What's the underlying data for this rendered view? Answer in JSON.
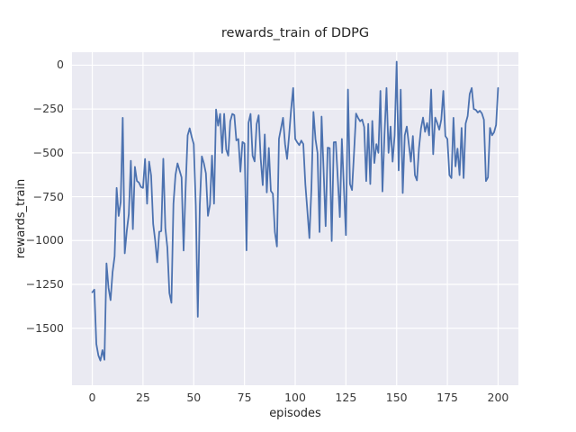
{
  "figure": {
    "background": "#ffffff",
    "axes_background": "#eaeaf2",
    "grid_color": "#ffffff",
    "text_color": "#262626"
  },
  "chart_data": {
    "type": "line",
    "title": "rewards_train of DDPG",
    "xlabel": "episodes",
    "ylabel": "rewards_train",
    "legend_position": "none",
    "grid": true,
    "line_color": "#4c72b0",
    "line_width": 1.8,
    "xlim": [
      -10,
      210
    ],
    "ylim": [
      -1825,
      74
    ],
    "xticks": [
      0,
      25,
      50,
      75,
      100,
      125,
      150,
      175,
      200
    ],
    "xtick_labels": [
      "0",
      "25",
      "50",
      "75",
      "100",
      "125",
      "150",
      "175",
      "200"
    ],
    "yticks": [
      0,
      -250,
      -500,
      -750,
      -1000,
      -1250,
      -1500
    ],
    "ytick_labels": [
      "0",
      "−250",
      "−500",
      "−750",
      "−1000",
      "−1250",
      "−1500"
    ],
    "x_start": 0,
    "x_step": 1,
    "series": [
      {
        "name": "rewards_train",
        "values": [
          -1295,
          -1280,
          -1590,
          -1655,
          -1685,
          -1625,
          -1680,
          -1130,
          -1270,
          -1340,
          -1180,
          -1090,
          -700,
          -860,
          -780,
          -300,
          -1073,
          -946,
          -850,
          -545,
          -935,
          -580,
          -660,
          -670,
          -695,
          -700,
          -535,
          -790,
          -550,
          -630,
          -905,
          -1000,
          -1124,
          -950,
          -946,
          -534,
          -929,
          -1040,
          -1300,
          -1355,
          -790,
          -627,
          -560,
          -600,
          -640,
          -1057,
          -700,
          -400,
          -360,
          -409,
          -450,
          -800,
          -1435,
          -795,
          -520,
          -560,
          -617,
          -859,
          -795,
          -516,
          -790,
          -253,
          -345,
          -278,
          -500,
          -278,
          -480,
          -516,
          -320,
          -278,
          -285,
          -429,
          -421,
          -607,
          -438,
          -447,
          -1056,
          -328,
          -278,
          -516,
          -549,
          -336,
          -286,
          -533,
          -684,
          -395,
          -726,
          -472,
          -717,
          -733,
          -952,
          -1034,
          -420,
          -360,
          -300,
          -450,
          -535,
          -400,
          -250,
          -130,
          -420,
          -440,
          -456,
          -430,
          -450,
          -678,
          -830,
          -986,
          -700,
          -267,
          -421,
          -500,
          -952,
          -293,
          -600,
          -918,
          -470,
          -473,
          -1003,
          -440,
          -438,
          -650,
          -866,
          -421,
          -700,
          -969,
          -139,
          -678,
          -712,
          -500,
          -276,
          -301,
          -320,
          -310,
          -353,
          -661,
          -335,
          -678,
          -318,
          -558,
          -450,
          -500,
          -147,
          -720,
          -400,
          -130,
          -500,
          -350,
          -550,
          -400,
          20,
          -600,
          -140,
          -729,
          -400,
          -350,
          -450,
          -550,
          -404,
          -627,
          -657,
          -474,
          -360,
          -299,
          -380,
          -330,
          -400,
          -139,
          -508,
          -299,
          -330,
          -368,
          -310,
          -147,
          -404,
          -421,
          -627,
          -644,
          -300,
          -577,
          -476,
          -627,
          -358,
          -644,
          -333,
          -290,
          -164,
          -130,
          -250,
          -255,
          -270,
          -260,
          -275,
          -311,
          -661,
          -640,
          -358,
          -400,
          -383,
          -341,
          -130
        ]
      }
    ]
  }
}
